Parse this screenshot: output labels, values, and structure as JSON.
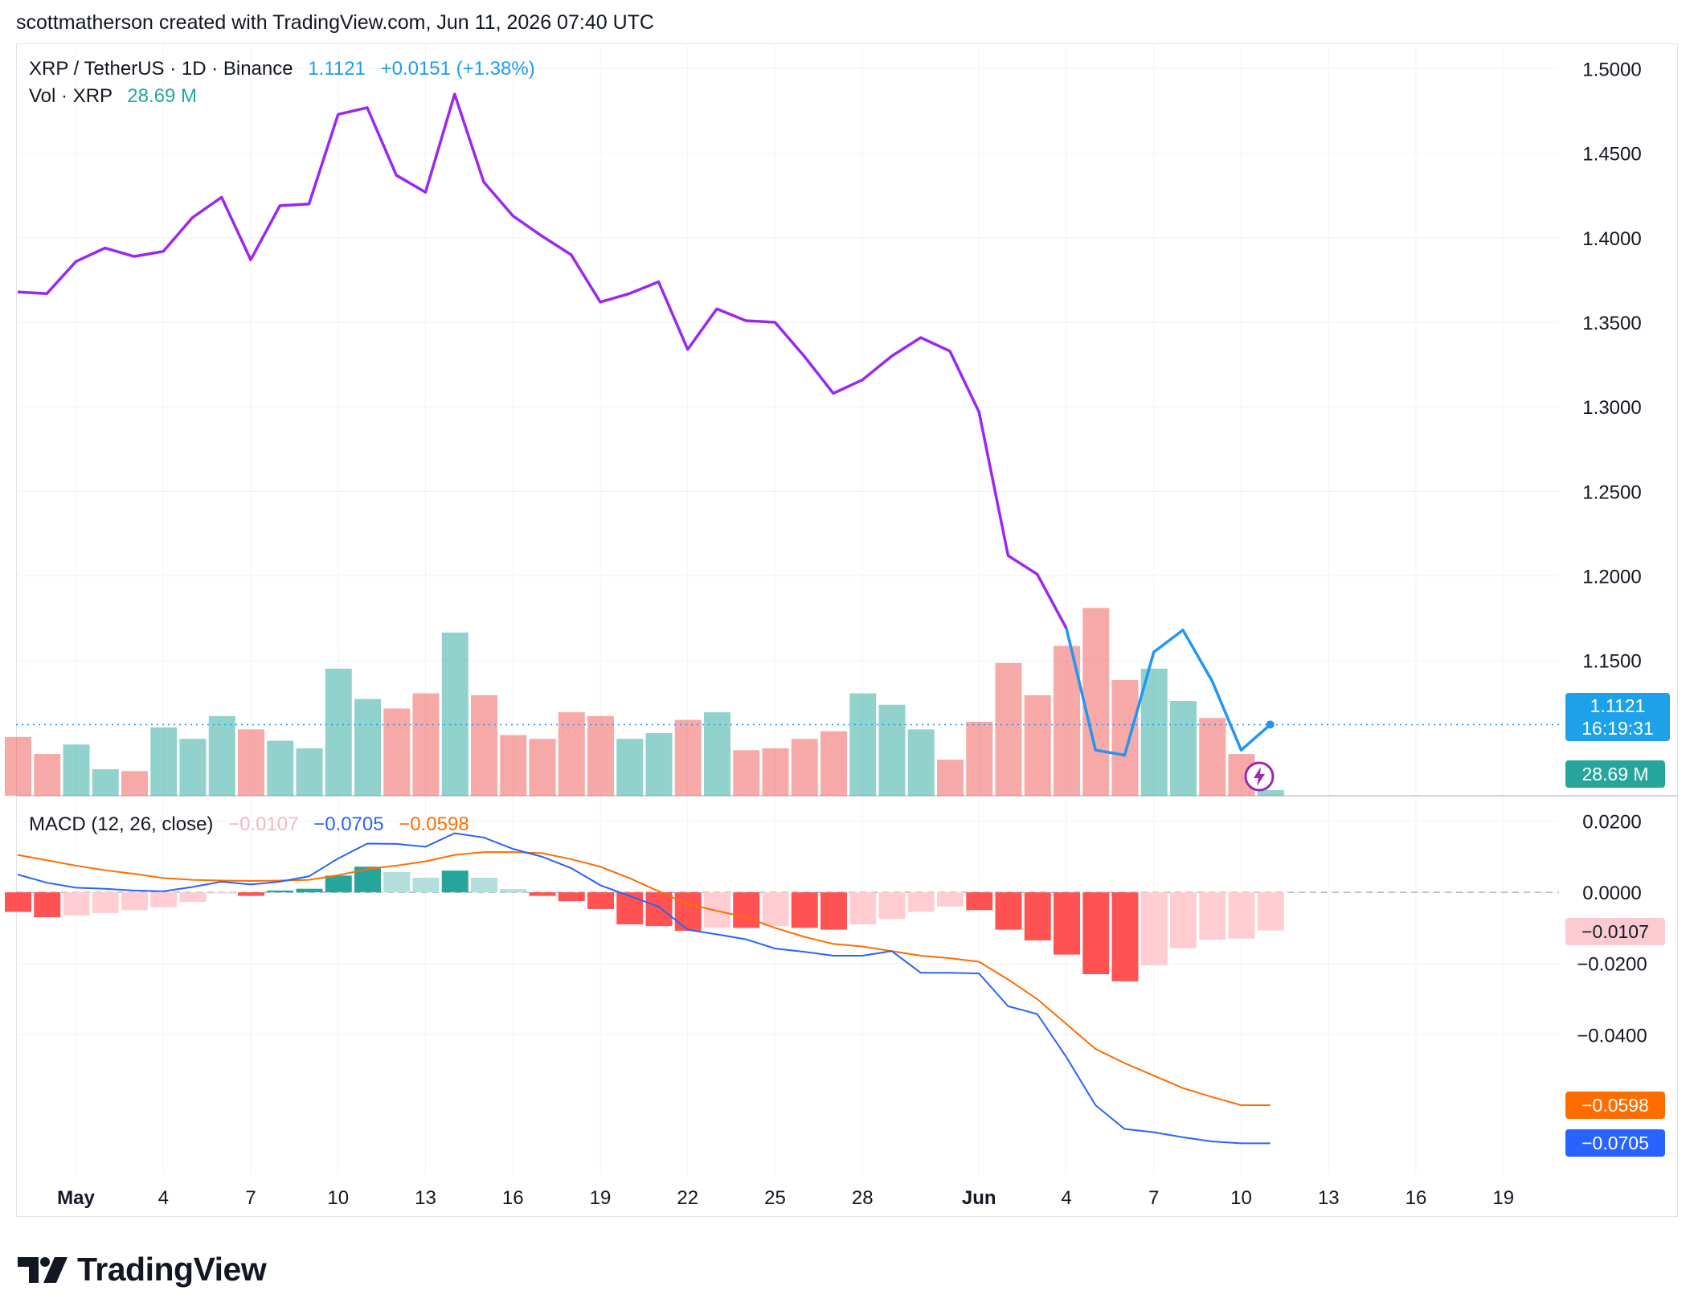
{
  "header": {
    "credit": "scottmatherson created with TradingView.com, Jun 11, 2026 07:40 UTC"
  },
  "legend": {
    "symbol": "XRP / TetherUS · 1D · Binance",
    "last": "1.1121",
    "change": "+0.0151 (+1.38%)",
    "vol_label": "Vol · XRP",
    "vol_value": "28.69 M",
    "macd_label": "MACD (12, 26, close)",
    "macd_hist": "−0.0107",
    "macd_line": "−0.0705",
    "macd_signal": "−0.0598"
  },
  "price_label": {
    "price": "1.1121",
    "countdown": "16:19:31"
  },
  "tags": {
    "volume": "28.69 M",
    "hist": "−0.0107",
    "signal": "−0.0598",
    "macd": "−0.0705"
  },
  "brand": {
    "name": "TradingView"
  },
  "colors": {
    "line_purple": "#9c27f0",
    "line_blue": "#2196f3",
    "vol_up": "#26a69a",
    "vol_down": "#ef5350",
    "macd_line": "#2962ff",
    "signal_line": "#ff6d00",
    "hist_up_strong": "#26a69a",
    "hist_up_weak": "#b2dfdb",
    "hist_down_strong": "#ff5252",
    "hist_down_weak": "#ffcdd2"
  },
  "chart_data": {
    "type": "line",
    "x_tick_labels": [
      "May",
      "4",
      "7",
      "10",
      "13",
      "16",
      "19",
      "22",
      "25",
      "28",
      "Jun",
      "4",
      "7",
      "10",
      "13",
      "16",
      "19"
    ],
    "price_axis": {
      "ticks": [
        "1.5000",
        "1.4500",
        "1.4000",
        "1.3500",
        "1.3000",
        "1.2500",
        "1.2000",
        "1.1500"
      ],
      "range": [
        1.07,
        1.515
      ]
    },
    "macd_axis": {
      "ticks": [
        "0.0200",
        "0.0000",
        "−0.0200",
        "−0.0400"
      ],
      "range": [
        -0.079,
        0.026
      ]
    },
    "start_date": "2026-04-29",
    "price": [
      1.368,
      1.367,
      1.386,
      1.394,
      1.389,
      1.392,
      1.412,
      1.424,
      1.387,
      1.419,
      1.42,
      1.473,
      1.477,
      1.437,
      1.427,
      1.485,
      1.433,
      1.413,
      1.401,
      1.39,
      1.362,
      1.367,
      1.374,
      1.334,
      1.358,
      1.351,
      1.35,
      1.33,
      1.308,
      1.316,
      1.33,
      1.341,
      1.333,
      1.297,
      1.212,
      1.201,
      1.169,
      1.097,
      1.094,
      1.155,
      1.168,
      1.138,
      1.097,
      1.1121
    ],
    "volume_rel": [
      0.31,
      0.22,
      0.27,
      0.14,
      0.13,
      0.36,
      0.3,
      0.42,
      0.35,
      0.29,
      0.25,
      0.67,
      0.51,
      0.46,
      0.54,
      0.86,
      0.53,
      0.32,
      0.3,
      0.44,
      0.42,
      0.3,
      0.33,
      0.4,
      0.44,
      0.24,
      0.25,
      0.3,
      0.34,
      0.54,
      0.48,
      0.35,
      0.19,
      0.39,
      0.7,
      0.53,
      0.79,
      0.99,
      0.61,
      0.67,
      0.5,
      0.41,
      0.22,
      0.03
    ],
    "volume_up": [
      false,
      false,
      true,
      true,
      false,
      true,
      true,
      true,
      false,
      true,
      true,
      true,
      true,
      false,
      false,
      true,
      false,
      false,
      false,
      false,
      false,
      true,
      true,
      false,
      true,
      false,
      false,
      false,
      false,
      true,
      true,
      true,
      false,
      false,
      false,
      false,
      false,
      false,
      false,
      true,
      true,
      false,
      false,
      true
    ],
    "macd": [
      0.005,
      0.0027,
      0.0013,
      0.001,
      0.0005,
      0.0003,
      0.0015,
      0.003,
      0.0022,
      0.003,
      0.0045,
      0.0095,
      0.0137,
      0.0136,
      0.0128,
      0.0166,
      0.0154,
      0.0122,
      0.01,
      0.0068,
      0.002,
      -0.001,
      -0.004,
      -0.0105,
      -0.0118,
      -0.0132,
      -0.0158,
      -0.0167,
      -0.0178,
      -0.0178,
      -0.0165,
      -0.0226,
      -0.0226,
      -0.0228,
      -0.032,
      -0.0342,
      -0.0463,
      -0.0598,
      -0.0665,
      -0.0674,
      -0.0688,
      -0.07,
      -0.0705,
      -0.0705
    ],
    "signal": [
      0.0105,
      0.009,
      0.0075,
      0.0062,
      0.0052,
      0.004,
      0.0035,
      0.0033,
      0.0032,
      0.0033,
      0.0035,
      0.0048,
      0.0065,
      0.0075,
      0.0087,
      0.0105,
      0.0113,
      0.0113,
      0.011,
      0.0093,
      0.0072,
      0.004,
      0.0003,
      -0.0033,
      -0.0052,
      -0.007,
      -0.01,
      -0.0125,
      -0.0145,
      -0.0152,
      -0.0165,
      -0.0178,
      -0.0185,
      -0.0195,
      -0.0245,
      -0.03,
      -0.037,
      -0.044,
      -0.048,
      -0.0515,
      -0.055,
      -0.0575,
      -0.0598,
      -0.0598
    ],
    "histogram": [
      -0.0055,
      -0.007,
      -0.0065,
      -0.0058,
      -0.005,
      -0.0042,
      -0.0027,
      -0.0003,
      -0.001,
      0.0005,
      0.001,
      0.0047,
      0.0072,
      0.0057,
      0.0041,
      0.0061,
      0.0041,
      0.0009,
      -0.001,
      -0.0025,
      -0.0047,
      -0.009,
      -0.0095,
      -0.0108,
      -0.01,
      -0.01,
      -0.0095,
      -0.01,
      -0.0105,
      -0.009,
      -0.0075,
      -0.0055,
      -0.004,
      -0.005,
      -0.0105,
      -0.0135,
      -0.0175,
      -0.023,
      -0.025,
      -0.0205,
      -0.0157,
      -0.0133,
      -0.013,
      -0.0107
    ]
  }
}
